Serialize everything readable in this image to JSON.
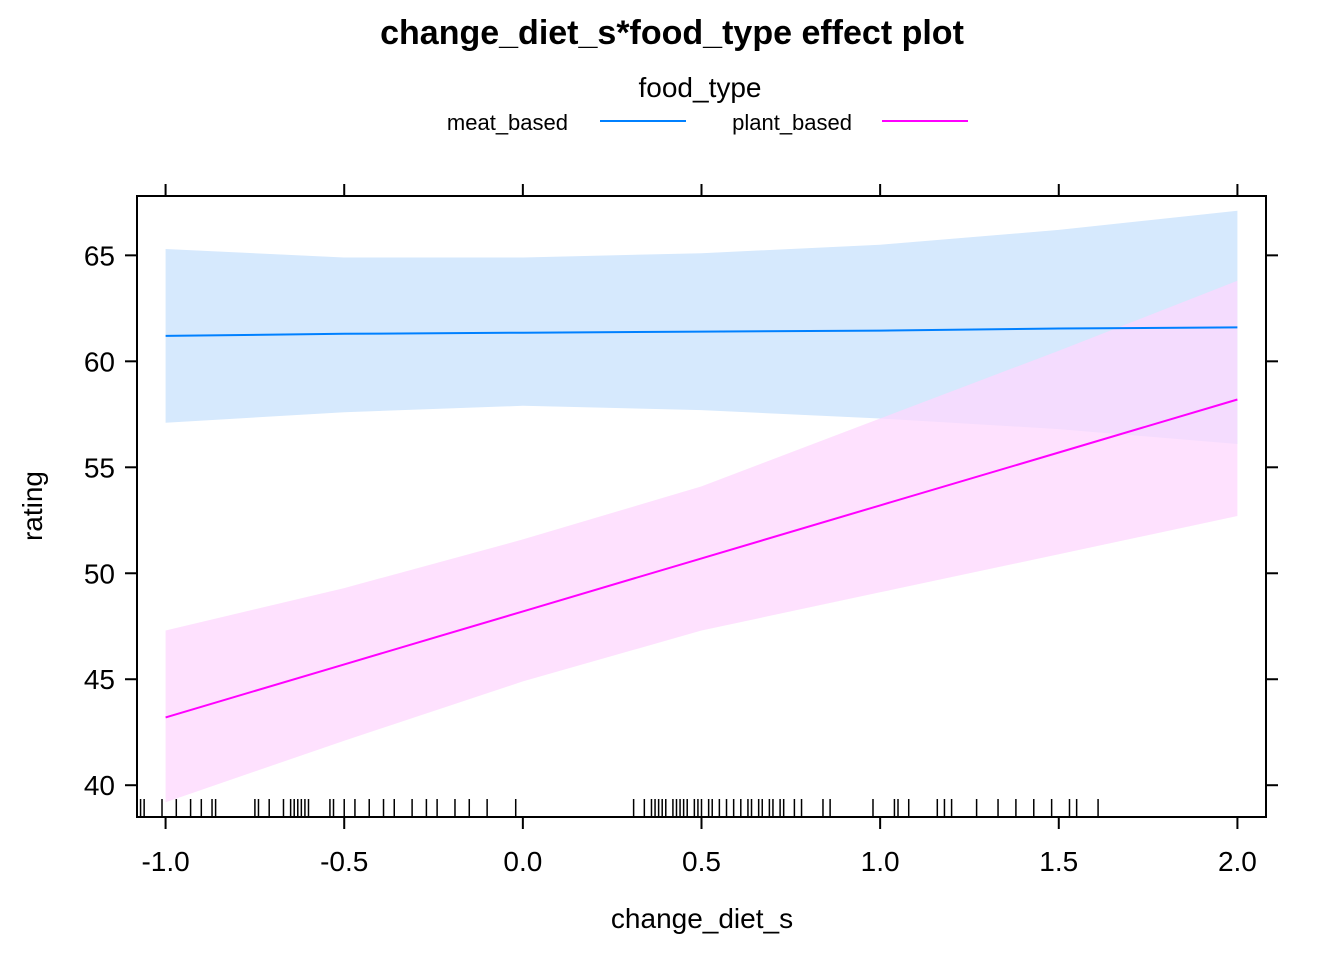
{
  "chart_data": {
    "type": "line",
    "title": "change_diet_s*food_type effect plot",
    "xlabel": "change_diet_s",
    "ylabel": "rating",
    "legend_title": "food_type",
    "legend_placement": "top",
    "xlim": [
      -1.08,
      2.08
    ],
    "ylim": [
      38.5,
      67.8
    ],
    "x_ticks": [
      -1.0,
      -0.5,
      0.0,
      0.5,
      1.0,
      1.5,
      2.0
    ],
    "x_tick_labels": [
      "-1.0",
      "-0.5",
      "0.0",
      "0.5",
      "1.0",
      "1.5",
      "2.0"
    ],
    "y_ticks": [
      40,
      45,
      50,
      55,
      60,
      65
    ],
    "y_tick_labels": [
      "40",
      "45",
      "50",
      "55",
      "60",
      "65"
    ],
    "grid": false,
    "series": [
      {
        "name": "meat_based",
        "color": "#0080ff",
        "band_color": "#d6e9fd",
        "x": [
          -1.0,
          -0.5,
          0.0,
          0.5,
          1.0,
          1.5,
          2.0
        ],
        "fit": [
          61.2,
          61.3,
          61.35,
          61.4,
          61.45,
          61.55,
          61.6
        ],
        "lower": [
          57.1,
          57.6,
          57.9,
          57.7,
          57.3,
          56.8,
          56.1
        ],
        "upper": [
          65.3,
          64.9,
          64.9,
          65.1,
          65.5,
          66.2,
          67.1
        ]
      },
      {
        "name": "plant_based",
        "color": "#ff00ff",
        "band_color": "#fdd7fd",
        "x": [
          -1.0,
          -0.5,
          0.0,
          0.5,
          1.0,
          1.5,
          2.0
        ],
        "fit": [
          43.2,
          45.7,
          48.2,
          50.7,
          53.2,
          55.7,
          58.2
        ],
        "lower": [
          39.2,
          42.1,
          44.9,
          47.3,
          49.1,
          50.9,
          52.7
        ],
        "upper": [
          47.3,
          49.3,
          51.6,
          54.1,
          57.3,
          60.5,
          63.8
        ]
      }
    ],
    "rug_x": [
      -1.07,
      -1.06,
      -1.01,
      -0.97,
      -0.93,
      -0.9,
      -0.87,
      -0.86,
      -0.75,
      -0.74,
      -0.71,
      -0.67,
      -0.65,
      -0.64,
      -0.63,
      -0.62,
      -0.61,
      -0.6,
      -0.54,
      -0.53,
      -0.5,
      -0.47,
      -0.43,
      -0.39,
      -0.36,
      -0.31,
      -0.27,
      -0.24,
      -0.19,
      -0.15,
      -0.1,
      -0.02,
      0.31,
      0.34,
      0.36,
      0.37,
      0.38,
      0.39,
      0.4,
      0.42,
      0.43,
      0.44,
      0.45,
      0.46,
      0.48,
      0.49,
      0.5,
      0.52,
      0.53,
      0.55,
      0.57,
      0.59,
      0.61,
      0.63,
      0.64,
      0.66,
      0.67,
      0.69,
      0.7,
      0.72,
      0.73,
      0.76,
      0.78,
      0.84,
      0.86,
      0.98,
      1.04,
      1.05,
      1.08,
      1.16,
      1.18,
      1.2,
      1.27,
      1.33,
      1.38,
      1.43,
      1.48,
      1.53,
      1.55,
      1.61
    ]
  }
}
